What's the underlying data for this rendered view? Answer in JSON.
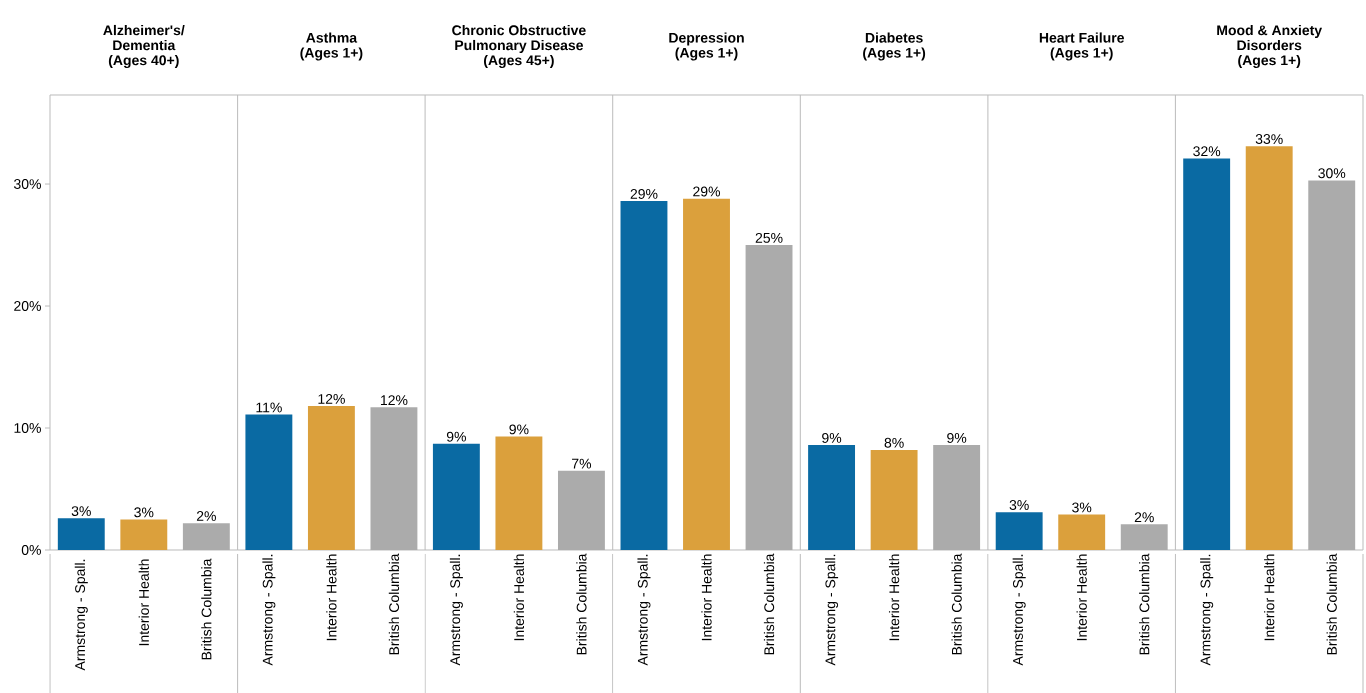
{
  "chart_data": [
    {
      "type": "bar",
      "title": "Alzheimer's/\nDementia\n(Ages 40+)",
      "categories": [
        "Armstrong - Spall.",
        "Interior Health",
        "British Columbia"
      ],
      "values": [
        2.6,
        2.5,
        2.2
      ],
      "value_labels": [
        "3%",
        "3%",
        "2%"
      ],
      "colors": [
        "#0a6aa3",
        "#dba03c",
        "#ababab"
      ],
      "ylim": [
        0,
        37.3
      ],
      "yticks": [
        {
          "value": 0,
          "label": "0%"
        },
        {
          "value": 10,
          "label": "10%"
        },
        {
          "value": 20,
          "label": "20%"
        },
        {
          "value": 30,
          "label": "30%"
        }
      ]
    },
    {
      "type": "bar",
      "title": "Asthma\n(Ages 1+)",
      "categories": [
        "Armstrong - Spall.",
        "Interior Health",
        "British Columbia"
      ],
      "values": [
        11.1,
        11.8,
        11.7
      ],
      "value_labels": [
        "11%",
        "12%",
        "12%"
      ],
      "colors": [
        "#0a6aa3",
        "#dba03c",
        "#ababab"
      ],
      "ylim": [
        0,
        37.3
      ],
      "tick_labels": "x"
    },
    {
      "type": "bar",
      "title": "Chronic Obstructive\nPulmonary Disease\n(Ages 45+)",
      "categories": [
        "Armstrong - Spall.",
        "Interior Health",
        "British Columbia"
      ],
      "values": [
        8.7,
        9.3,
        6.5
      ],
      "value_labels": [
        "9%",
        "9%",
        "7%"
      ],
      "colors": [
        "#0a6aa3",
        "#dba03c",
        "#ababab"
      ],
      "ylim": [
        0,
        37.3
      ],
      "tick_labels": "x"
    },
    {
      "type": "bar",
      "title": "Depression\n(Ages 1+)",
      "categories": [
        "Armstrong - Spall.",
        "Interior Health",
        "British Columbia"
      ],
      "values": [
        28.6,
        28.8,
        25.0
      ],
      "value_labels": [
        "29%",
        "29%",
        "25%"
      ],
      "colors": [
        "#0a6aa3",
        "#dba03c",
        "#ababab"
      ],
      "ylim": [
        0,
        37.3
      ],
      "tick_labels": "x"
    },
    {
      "type": "bar",
      "title": "Diabetes\n(Ages 1+)",
      "categories": [
        "Armstrong - Spall.",
        "Interior Health",
        "British Columbia"
      ],
      "values": [
        8.6,
        8.2,
        8.6
      ],
      "value_labels": [
        "9%",
        "8%",
        "9%"
      ],
      "colors": [
        "#0a6aa3",
        "#dba03c",
        "#ababab"
      ],
      "ylim": [
        0,
        37.3
      ],
      "tick_labels": "x"
    },
    {
      "type": "bar",
      "title": "Heart Failure\n(Ages 1+)",
      "categories": [
        "Armstrong - Spall.",
        "Interior Health",
        "British Columbia"
      ],
      "values": [
        3.1,
        2.9,
        2.1
      ],
      "value_labels": [
        "3%",
        "3%",
        "2%"
      ],
      "colors": [
        "#0a6aa3",
        "#dba03c",
        "#ababab"
      ],
      "ylim": [
        0,
        37.3
      ],
      "tick_labels": "x"
    },
    {
      "type": "bar",
      "title": "Mood & Anxiety\nDisorders\n(Ages 1+)",
      "categories": [
        "Armstrong - Spall.",
        "Interior Health",
        "British Columbia"
      ],
      "values": [
        32.1,
        33.1,
        30.3
      ],
      "value_labels": [
        "32%",
        "33%",
        "30%"
      ],
      "colors": [
        "#0a6aa3",
        "#dba03c",
        "#ababab"
      ],
      "ylim": [
        0,
        37.3
      ],
      "tick_labels": "x"
    }
  ]
}
